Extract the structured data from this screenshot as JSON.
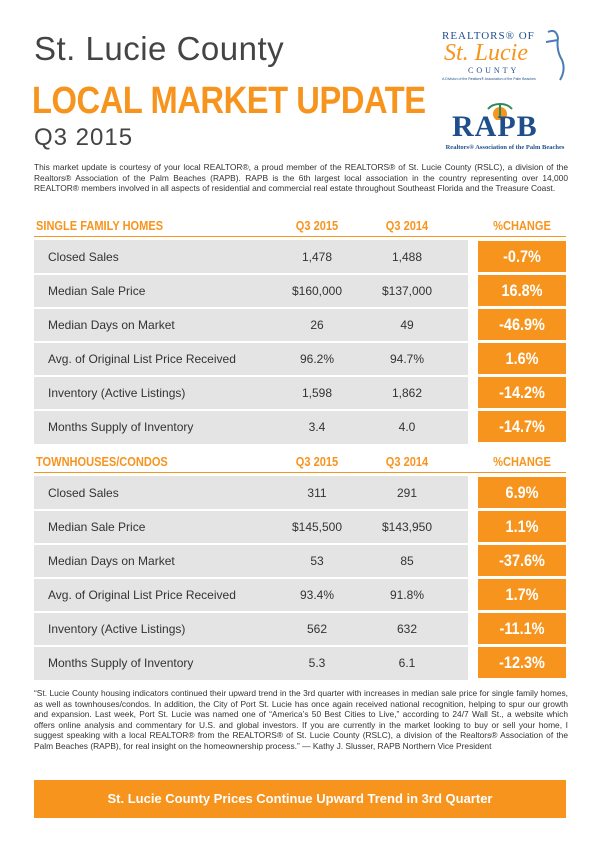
{
  "header": {
    "title": "St. Lucie County",
    "subtitle": "LOCAL MARKET UPDATE",
    "period": "Q3 2015"
  },
  "logos": {
    "rslc_top": "REALTORS® OF",
    "rslc_name": "St. Lucie",
    "rslc_bottom": "COUNTY",
    "rslc_note": "A Division of the Realtors® Association of the Palm Beaches",
    "rapb": "RAPB",
    "rapb_name": "Realtors® Association of the Palm Beaches"
  },
  "intro": "This market update is courtesy of your local REALTOR®, a proud member of the REALTORS® of St. Lucie County (RSLC), a division of the Realtors® Association of the Palm Beaches (RAPB). RAPB is the 6th largest local association in the country representing over 14,000 REALTOR® members involved in all aspects of residential and commercial real estate throughout Southeast Florida and the Treasure Coast.",
  "tables": [
    {
      "header": [
        "SINGLE FAMILY HOMES",
        "Q3 2015",
        "Q3 2014",
        "%CHANGE"
      ],
      "rows": [
        [
          "Closed Sales",
          "1,478",
          "1,488",
          "-0.7%"
        ],
        [
          "Median Sale Price",
          "$160,000",
          "$137,000",
          "16.8%"
        ],
        [
          "Median Days on Market",
          "26",
          "49",
          "-46.9%"
        ],
        [
          "Avg. of Original List Price Received",
          "96.2%",
          "94.7%",
          "1.6%"
        ],
        [
          "Inventory (Active Listings)",
          "1,598",
          "1,862",
          "-14.2%"
        ],
        [
          "Months Supply of Inventory",
          "3.4",
          "4.0",
          "-14.7%"
        ]
      ]
    },
    {
      "header": [
        "TOWNHOUSES/CONDOS",
        "Q3 2015",
        "Q3 2014",
        "%CHANGE"
      ],
      "rows": [
        [
          "Closed Sales",
          "311",
          "291",
          "6.9%"
        ],
        [
          "Median Sale Price",
          "$145,500",
          "$143,950",
          "1.1%"
        ],
        [
          "Median Days on Market",
          "53",
          "85",
          "-37.6%"
        ],
        [
          "Avg. of Original List Price Received",
          "93.4%",
          "91.8%",
          "1.7%"
        ],
        [
          "Inventory (Active Listings)",
          "562",
          "632",
          "-11.1%"
        ],
        [
          "Months Supply of Inventory",
          "5.3",
          "6.1",
          "-12.3%"
        ]
      ]
    }
  ],
  "quote": "“St. Lucie County housing indicators continued their upward trend in the 3rd quarter with increases in median sale price for single family homes, as well as townhouses/condos. In addition, the City of Port St. Lucie has once again received national recognition, helping to spur our growth and expansion. Last week, Port St. Lucie was named one of “America’s 50 Best Cities to Live,” according to 24/7 Wall St., a website which offers online analysis and commentary for U.S. and global investors.  If you are currently in the market looking to buy or sell your home, I suggest speaking with a local REALTOR® from the REALTORS® of St. Lucie County (RSLC), a division of the Realtors® Association of the Palm Beaches (RAPB), for real insight on the homeownership process.” — Kathy J. Slusser, RAPB Northern Vice President",
  "banner": "St. Lucie County Prices Continue Upward Trend in 3rd Quarter"
}
